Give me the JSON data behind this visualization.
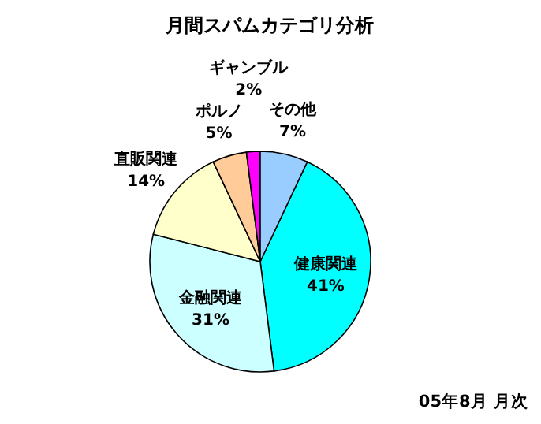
{
  "chart_data": {
    "type": "pie",
    "title": "月間スパムカテゴリ分析",
    "categories": [
      "健康関連",
      "金融関連",
      "直販関連",
      "ポルノ",
      "ギャンブル",
      "その他"
    ],
    "values": [
      41,
      31,
      14,
      5,
      2,
      7
    ],
    "value_labels": [
      "41%",
      "31%",
      "14%",
      "5%",
      "2%",
      "7%"
    ],
    "colors": [
      "#00ffff",
      "#ccffff",
      "#ffffcc",
      "#ffcc99",
      "#ff00ff",
      "#99ccff"
    ],
    "annotations": [
      "05年8月 月次"
    ]
  }
}
